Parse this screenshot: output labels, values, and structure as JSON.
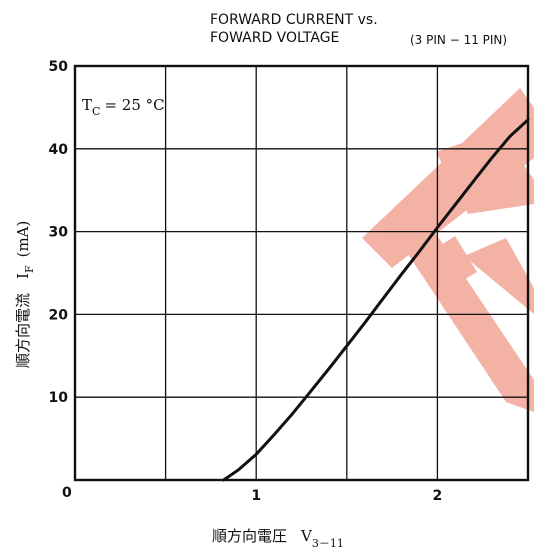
{
  "chart_data": {
    "type": "line",
    "title_line1": "FORWARD CURRENT vs.",
    "title_line2": "FOWARD VOLTAGE",
    "subtitle": "(3 PIN − 11 PIN)",
    "xlabel_main": "順方向電圧",
    "xlabel_symbol": "V",
    "xlabel_subscript": "3－11",
    "ylabel_main": "順方向電流",
    "ylabel_symbol": "I",
    "ylabel_subscript": "F",
    "ylabel_unit": "(mA)",
    "annotation_symbol": "T",
    "annotation_subscript": "C",
    "annotation_value": "= 25 °C",
    "xlim": [
      0,
      2.5
    ],
    "ylim": [
      0,
      50
    ],
    "x_ticks": [
      0,
      0.5,
      1,
      1.5,
      2,
      2.5
    ],
    "x_tick_labels": [
      "0",
      "",
      "1",
      "",
      "2",
      ""
    ],
    "y_ticks": [
      0,
      10,
      20,
      30,
      40,
      50
    ],
    "y_tick_labels": [
      "0",
      "10",
      "20",
      "30",
      "40",
      "50"
    ],
    "grid": true,
    "watermark_color": "#f3a596",
    "series": [
      {
        "x": [
          0.82,
          0.9,
          1.0,
          1.1,
          1.2,
          1.3,
          1.4,
          1.5,
          1.6,
          1.7,
          1.8,
          1.9,
          2.0,
          2.1,
          2.2,
          2.3,
          2.4,
          2.5
        ],
        "y": [
          0,
          1.2,
          3.1,
          5.5,
          8.0,
          10.7,
          13.4,
          16.2,
          19.0,
          21.9,
          24.8,
          27.6,
          30.5,
          33.3,
          36.1,
          38.9,
          41.5,
          43.5
        ]
      }
    ]
  }
}
